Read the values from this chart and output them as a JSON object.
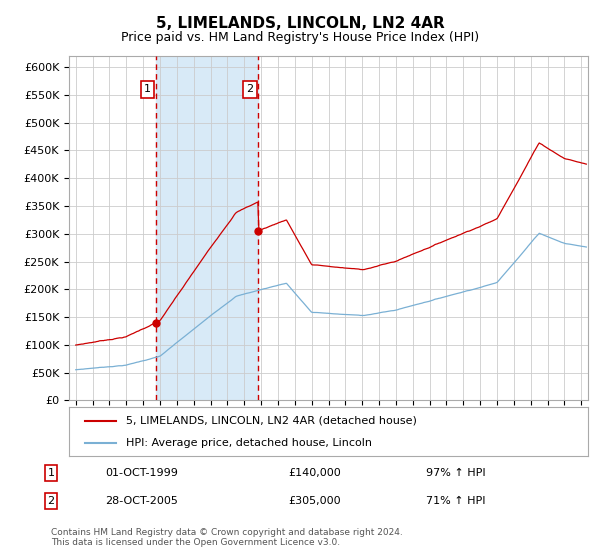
{
  "title": "5, LIMELANDS, LINCOLN, LN2 4AR",
  "subtitle": "Price paid vs. HM Land Registry's House Price Index (HPI)",
  "ylim": [
    0,
    620000
  ],
  "yticks": [
    0,
    50000,
    100000,
    150000,
    200000,
    250000,
    300000,
    350000,
    400000,
    450000,
    500000,
    550000,
    600000
  ],
  "ytick_labels": [
    "£0",
    "£50K",
    "£100K",
    "£150K",
    "£200K",
    "£250K",
    "£300K",
    "£350K",
    "£400K",
    "£450K",
    "£500K",
    "£550K",
    "£600K"
  ],
  "xlim_start": 1994.6,
  "xlim_end": 2025.4,
  "purchase1_year": 1999.75,
  "purchase1_price": 140000,
  "purchase2_year": 2005.83,
  "purchase2_price": 305000,
  "line_color_house": "#cc0000",
  "line_color_hpi": "#7ab0d4",
  "shade_color": "#d8eaf7",
  "dashed_color": "#cc0000",
  "legend_label_house": "5, LIMELANDS, LINCOLN, LN2 4AR (detached house)",
  "legend_label_hpi": "HPI: Average price, detached house, Lincoln",
  "annotation1_label": "1",
  "annotation1_date": "01-OCT-1999",
  "annotation1_price": "£140,000",
  "annotation1_hpi": "97% ↑ HPI",
  "annotation2_label": "2",
  "annotation2_date": "28-OCT-2005",
  "annotation2_price": "£305,000",
  "annotation2_hpi": "71% ↑ HPI",
  "footer": "Contains HM Land Registry data © Crown copyright and database right 2024.\nThis data is licensed under the Open Government Licence v3.0.",
  "background_color": "#ffffff",
  "grid_color": "#cccccc"
}
